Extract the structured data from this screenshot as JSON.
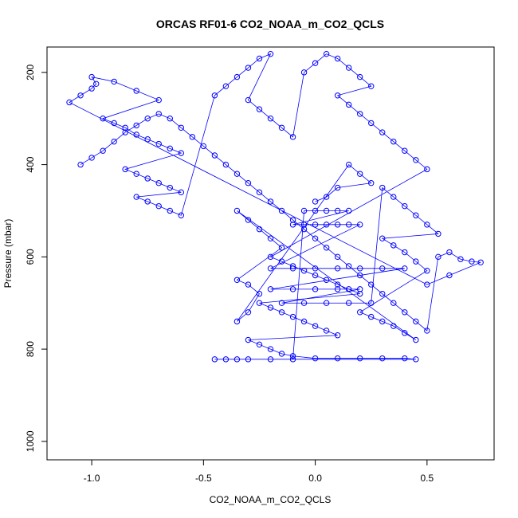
{
  "chart_data": {
    "type": "scatter",
    "title": "ORCAS RF01-6 CO2_NOAA_m_CO2_QCLS",
    "xlabel": "CO2_NOAA_m_CO2_QCLS",
    "ylabel": "Pressure (mbar)",
    "xlim": [
      -1.2,
      0.8
    ],
    "ylim": [
      1040,
      145
    ],
    "y_inverted": true,
    "x_ticks": [
      -1.0,
      -0.5,
      0.0,
      0.5
    ],
    "x_tick_labels": [
      "-1.0",
      "-0.5",
      "0.0",
      "0.5"
    ],
    "y_ticks": [
      200,
      400,
      600,
      800,
      1000
    ],
    "y_tick_labels": [
      "200",
      "400",
      "600",
      "800",
      "1000"
    ],
    "grid": false,
    "legend": "none",
    "color": "#0000ff",
    "marker": "open-circle",
    "connect_lines": true,
    "series": [
      {
        "points": [
          [
            -1.05,
            400
          ],
          [
            -1.0,
            385
          ],
          [
            -0.95,
            370
          ],
          [
            -0.9,
            350
          ],
          [
            -0.85,
            330
          ],
          [
            -0.8,
            315
          ],
          [
            -0.75,
            300
          ],
          [
            -0.7,
            290
          ],
          [
            -0.65,
            300
          ],
          [
            -0.6,
            320
          ],
          [
            -0.55,
            340
          ],
          [
            -0.5,
            360
          ],
          [
            -0.45,
            380
          ],
          [
            -0.4,
            400
          ],
          [
            -0.35,
            420
          ],
          [
            -0.3,
            440
          ],
          [
            -0.25,
            460
          ],
          [
            -0.2,
            480
          ],
          [
            -0.15,
            500
          ],
          [
            -0.1,
            520
          ],
          [
            -0.05,
            540
          ],
          [
            0.0,
            560
          ],
          [
            0.05,
            580
          ],
          [
            0.1,
            600
          ],
          [
            0.15,
            620
          ],
          [
            0.2,
            640
          ],
          [
            0.25,
            660
          ],
          [
            0.3,
            680
          ],
          [
            0.35,
            700
          ],
          [
            0.4,
            720
          ],
          [
            0.45,
            740
          ],
          [
            0.5,
            760
          ],
          [
            0.55,
            600
          ],
          [
            0.6,
            590
          ],
          [
            0.65,
            605
          ],
          [
            0.7,
            610
          ],
          [
            0.74,
            612
          ],
          [
            0.6,
            640
          ],
          [
            0.5,
            660
          ],
          [
            -1.1,
            265
          ],
          [
            -1.05,
            250
          ],
          [
            -1.0,
            235
          ],
          [
            -0.98,
            225
          ],
          [
            -1.0,
            210
          ],
          [
            -0.9,
            220
          ],
          [
            -0.8,
            240
          ],
          [
            -0.7,
            260
          ],
          [
            -0.95,
            300
          ],
          [
            -0.9,
            310
          ],
          [
            -0.85,
            320
          ],
          [
            -0.8,
            335
          ],
          [
            -0.75,
            345
          ],
          [
            -0.7,
            355
          ],
          [
            -0.65,
            365
          ],
          [
            -0.6,
            375
          ],
          [
            -0.85,
            410
          ],
          [
            -0.8,
            420
          ],
          [
            -0.75,
            430
          ],
          [
            -0.7,
            440
          ],
          [
            -0.65,
            450
          ],
          [
            -0.6,
            460
          ],
          [
            -0.8,
            470
          ],
          [
            -0.75,
            480
          ],
          [
            -0.7,
            490
          ],
          [
            -0.65,
            500
          ],
          [
            -0.6,
            510
          ],
          [
            -0.45,
            250
          ],
          [
            -0.4,
            230
          ],
          [
            -0.35,
            210
          ],
          [
            -0.3,
            190
          ],
          [
            -0.25,
            170
          ],
          [
            -0.2,
            160
          ],
          [
            -0.3,
            260
          ],
          [
            -0.25,
            280
          ],
          [
            -0.2,
            300
          ],
          [
            -0.15,
            320
          ],
          [
            -0.1,
            340
          ],
          [
            -0.05,
            200
          ],
          [
            0.0,
            180
          ],
          [
            0.05,
            160
          ],
          [
            0.1,
            170
          ],
          [
            0.15,
            190
          ],
          [
            0.2,
            210
          ],
          [
            0.25,
            230
          ],
          [
            0.1,
            250
          ],
          [
            0.15,
            270
          ],
          [
            0.2,
            290
          ],
          [
            0.25,
            310
          ],
          [
            0.3,
            330
          ],
          [
            0.35,
            350
          ],
          [
            0.4,
            370
          ],
          [
            0.45,
            390
          ],
          [
            0.5,
            410
          ],
          [
            -0.2,
            600
          ],
          [
            -0.15,
            610
          ],
          [
            -0.1,
            620
          ],
          [
            -0.05,
            630
          ],
          [
            0.0,
            640
          ],
          [
            0.05,
            650
          ],
          [
            0.1,
            660
          ],
          [
            0.15,
            670
          ],
          [
            0.2,
            680
          ],
          [
            -0.25,
            700
          ],
          [
            -0.2,
            710
          ],
          [
            -0.15,
            720
          ],
          [
            -0.1,
            730
          ],
          [
            -0.05,
            740
          ],
          [
            0.0,
            750
          ],
          [
            0.05,
            760
          ],
          [
            0.1,
            770
          ],
          [
            -0.3,
            780
          ],
          [
            -0.25,
            790
          ],
          [
            -0.2,
            800
          ],
          [
            -0.15,
            810
          ],
          [
            -0.1,
            815
          ],
          [
            0.0,
            820
          ],
          [
            0.1,
            820
          ],
          [
            0.2,
            820
          ],
          [
            0.3,
            820
          ],
          [
            0.4,
            820
          ],
          [
            0.45,
            822
          ],
          [
            -0.45,
            822
          ],
          [
            -0.4,
            822
          ],
          [
            -0.35,
            822
          ],
          [
            -0.3,
            822
          ],
          [
            -0.2,
            822
          ],
          [
            -0.1,
            822
          ],
          [
            -0.05,
            500
          ],
          [
            0.0,
            500
          ],
          [
            0.05,
            500
          ],
          [
            0.1,
            500
          ],
          [
            0.15,
            500
          ],
          [
            -0.1,
            530
          ],
          [
            -0.05,
            530
          ],
          [
            0.0,
            530
          ],
          [
            0.05,
            530
          ],
          [
            0.1,
            530
          ],
          [
            0.15,
            530
          ],
          [
            0.2,
            530
          ],
          [
            -0.2,
            625
          ],
          [
            -0.1,
            625
          ],
          [
            0.0,
            625
          ],
          [
            0.1,
            625
          ],
          [
            0.2,
            625
          ],
          [
            0.3,
            625
          ],
          [
            0.4,
            625
          ],
          [
            -0.2,
            670
          ],
          [
            -0.1,
            670
          ],
          [
            0.0,
            670
          ],
          [
            0.1,
            670
          ],
          [
            0.2,
            670
          ],
          [
            -0.15,
            700
          ],
          [
            -0.05,
            700
          ],
          [
            0.05,
            700
          ],
          [
            0.15,
            700
          ],
          [
            0.25,
            700
          ],
          [
            0.3,
            450
          ],
          [
            0.35,
            470
          ],
          [
            0.4,
            490
          ],
          [
            0.45,
            510
          ],
          [
            0.5,
            530
          ],
          [
            0.55,
            550
          ],
          [
            0.3,
            560
          ],
          [
            0.35,
            575
          ],
          [
            0.4,
            590
          ],
          [
            0.45,
            610
          ],
          [
            0.5,
            630
          ],
          [
            0.2,
            720
          ],
          [
            0.25,
            730
          ],
          [
            0.3,
            740
          ],
          [
            0.35,
            750
          ],
          [
            0.4,
            765
          ],
          [
            0.45,
            780
          ],
          [
            -0.35,
            500
          ],
          [
            -0.3,
            520
          ],
          [
            -0.25,
            540
          ],
          [
            -0.2,
            560
          ],
          [
            -0.15,
            580
          ],
          [
            -0.35,
            650
          ],
          [
            -0.3,
            660
          ],
          [
            -0.25,
            680
          ],
          [
            -0.3,
            720
          ],
          [
            -0.35,
            740
          ],
          [
            0.15,
            400
          ],
          [
            0.2,
            420
          ],
          [
            0.25,
            440
          ],
          [
            0.1,
            450
          ],
          [
            0.05,
            470
          ],
          [
            0.0,
            480
          ]
        ]
      }
    ]
  }
}
